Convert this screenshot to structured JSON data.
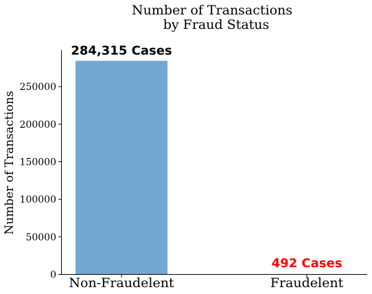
{
  "chart_data": {
    "type": "bar",
    "title_line1": "Number of Transactions",
    "title_line2": "by Fraud Status",
    "xlabel": "",
    "ylabel": "Number of Transactions",
    "categories": [
      "Non-Fraudelent",
      "Fraudelent"
    ],
    "values": [
      284315,
      492
    ],
    "annotations": [
      "284,315 Cases",
      "492 Cases"
    ],
    "annotation_colors": [
      "#000000",
      "#ff0000"
    ],
    "bar_color": "#72a8d1",
    "ylim": [
      0,
      298531
    ],
    "yticks": [
      0,
      50000,
      100000,
      150000,
      200000,
      250000
    ],
    "grid": false,
    "legend": "none"
  }
}
